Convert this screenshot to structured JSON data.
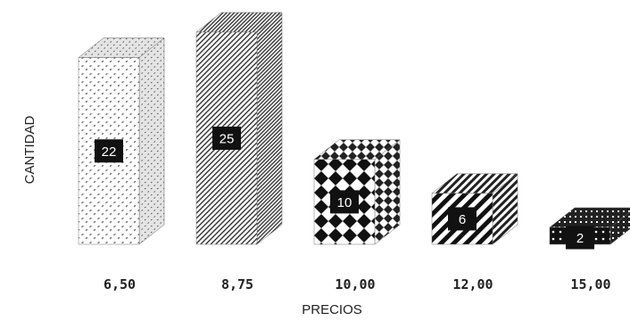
{
  "chart_data": {
    "type": "bar",
    "style": "3d-pattern-filled",
    "categories": [
      "6,50",
      "8,75",
      "10,00",
      "12,00",
      "15,00"
    ],
    "values": [
      22,
      25,
      10,
      6,
      2
    ],
    "value_labels": [
      "22",
      "25",
      "10",
      "6",
      "2"
    ],
    "xlabel": "PRECIOS",
    "ylabel": "CANTIDAD",
    "ylim": [
      0,
      25
    ],
    "grid": false,
    "legend": "none",
    "patterns": [
      "dots",
      "diagonal-thin",
      "diamonds",
      "diagonal-thick",
      "solid-dark"
    ],
    "colors": {
      "ink": "#1a1a1a",
      "background": "#ffffff"
    }
  }
}
